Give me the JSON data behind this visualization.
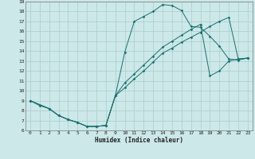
{
  "xlabel": "Humidex (Indice chaleur)",
  "xlim": [
    -0.5,
    23.5
  ],
  "ylim": [
    6,
    19
  ],
  "xticks": [
    0,
    1,
    2,
    3,
    4,
    5,
    6,
    7,
    8,
    9,
    10,
    11,
    12,
    13,
    14,
    15,
    16,
    17,
    18,
    19,
    20,
    21,
    22,
    23
  ],
  "yticks": [
    6,
    7,
    8,
    9,
    10,
    11,
    12,
    13,
    14,
    15,
    16,
    17,
    18,
    19
  ],
  "bg_color": "#cce8e8",
  "grid_color": "#aacccc",
  "line_color": "#1a7070",
  "line1_x": [
    0,
    1,
    2,
    3,
    4,
    5,
    6,
    7,
    8,
    9,
    10,
    11,
    12,
    13,
    14,
    15,
    16,
    17,
    18,
    19,
    20,
    21,
    22,
    23
  ],
  "line1_y": [
    9.0,
    8.5,
    8.2,
    7.5,
    7.1,
    6.8,
    6.4,
    6.4,
    6.5,
    9.5,
    13.9,
    17.0,
    17.5,
    18.0,
    18.7,
    18.6,
    18.1,
    16.5,
    16.4,
    15.5,
    14.5,
    13.2,
    13.1,
    13.3
  ],
  "line2_x": [
    0,
    2,
    3,
    4,
    5,
    6,
    7,
    8,
    9,
    10,
    11,
    12,
    13,
    14,
    15,
    16,
    17,
    18,
    19,
    20,
    21,
    22,
    23
  ],
  "line2_y": [
    9.0,
    8.2,
    7.5,
    7.1,
    6.8,
    6.4,
    6.4,
    6.5,
    9.5,
    10.3,
    11.2,
    12.0,
    12.9,
    13.8,
    14.3,
    14.9,
    15.4,
    15.9,
    16.5,
    17.0,
    17.4,
    13.2,
    13.3
  ],
  "line3_x": [
    0,
    2,
    3,
    4,
    5,
    6,
    7,
    8,
    9,
    10,
    11,
    12,
    13,
    14,
    15,
    16,
    17,
    18,
    19,
    20,
    21,
    22,
    23
  ],
  "line3_y": [
    9.0,
    8.2,
    7.5,
    7.1,
    6.8,
    6.4,
    6.4,
    6.5,
    9.5,
    10.8,
    11.7,
    12.6,
    13.5,
    14.4,
    15.0,
    15.6,
    16.2,
    16.7,
    11.5,
    12.0,
    13.0,
    13.2,
    13.3
  ]
}
